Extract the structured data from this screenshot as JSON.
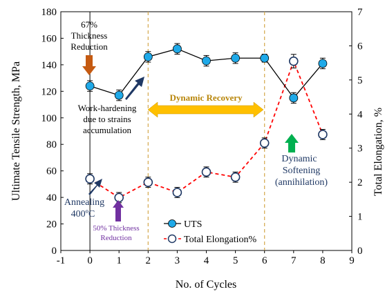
{
  "chart_data": {
    "type": "line",
    "xlabel": "No. of Cycles",
    "ylabel_left": "Ultimate Tensile Strength, MPa",
    "ylabel_right": "Total Elongation, %",
    "xlim": [
      -1,
      9
    ],
    "ylim_left": [
      0,
      180
    ],
    "ylim_right": [
      0,
      7
    ],
    "xticks": [
      "-1",
      "0",
      "1",
      "2",
      "3",
      "4",
      "5",
      "6",
      "7",
      "8",
      "9"
    ],
    "yticks_left": [
      "0",
      "20",
      "40",
      "60",
      "80",
      "100",
      "120",
      "140",
      "160",
      "180"
    ],
    "yticks_right": [
      "0",
      "1",
      "2",
      "3",
      "4",
      "5",
      "6",
      "7"
    ],
    "legend_placement": "bottom-center",
    "series": [
      {
        "name": "UTS",
        "axis": "left",
        "color": "#000000",
        "marker_color": "#1fa9e8",
        "x": [
          0,
          1,
          2,
          3,
          4,
          5,
          6,
          7,
          8
        ],
        "y": [
          124,
          117,
          146,
          152,
          143,
          145,
          145,
          115,
          141
        ],
        "err": [
          4,
          4,
          4,
          4,
          4,
          4,
          3,
          4,
          4
        ]
      },
      {
        "name": "Total Elongation%",
        "axis": "right",
        "color": "#ff0000",
        "marker_color": "#1f3864",
        "x": [
          0,
          1,
          2,
          3,
          4,
          5,
          6,
          7,
          8
        ],
        "y": [
          2.1,
          1.55,
          2.0,
          1.7,
          2.3,
          2.15,
          3.15,
          5.55,
          3.4
        ],
        "err": [
          0.15,
          0.15,
          0.15,
          0.15,
          0.15,
          0.15,
          0.15,
          0.2,
          0.15
        ]
      }
    ],
    "vlines_x": [
      2,
      6
    ],
    "annotations": {
      "thickness67": [
        "67%",
        "Thickness",
        "Reduction"
      ],
      "work_hardening": [
        "Work-hardening",
        "due to strains",
        "accumulation"
      ],
      "dynamic_recovery": "Dynamic Recovery",
      "dynamic_softening": [
        "Dynamic",
        "Softening",
        "(annihilation)"
      ],
      "annealing": [
        "Annealing",
        "400ºC"
      ],
      "thickness50": [
        "50% Thickness",
        "Reduction"
      ]
    }
  }
}
